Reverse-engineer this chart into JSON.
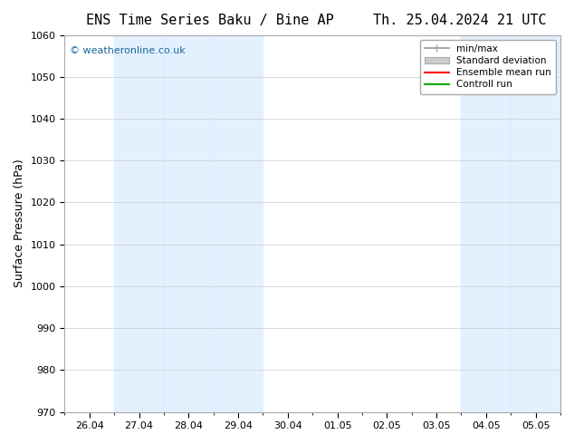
{
  "title_left": "ENS Time Series Baku / Bine AP",
  "title_right": "Th. 25.04.2024 21 UTC",
  "ylabel": "Surface Pressure (hPa)",
  "ylim": [
    970,
    1060
  ],
  "yticks": [
    970,
    980,
    990,
    1000,
    1010,
    1020,
    1030,
    1040,
    1050,
    1060
  ],
  "x_labels": [
    "26.04",
    "27.04",
    "28.04",
    "29.04",
    "30.04",
    "01.05",
    "02.05",
    "03.05",
    "04.05",
    "05.05"
  ],
  "shaded_bands": [
    1,
    2,
    3,
    8,
    9
  ],
  "band_color": "#ddeeff",
  "band_alpha": 0.8,
  "watermark": "© weatheronline.co.uk",
  "watermark_color": "#1a6699",
  "legend_items": [
    "min/max",
    "Standard deviation",
    "Ensemble mean run",
    "Controll run"
  ],
  "legend_colors": [
    "#aaaaaa",
    "#cccccc",
    "#ff0000",
    "#00aa00"
  ],
  "background_color": "#ffffff",
  "plot_bg_color": "#ffffff",
  "border_color": "#aabbcc",
  "title_fontsize": 11,
  "axis_fontsize": 9,
  "tick_fontsize": 8
}
